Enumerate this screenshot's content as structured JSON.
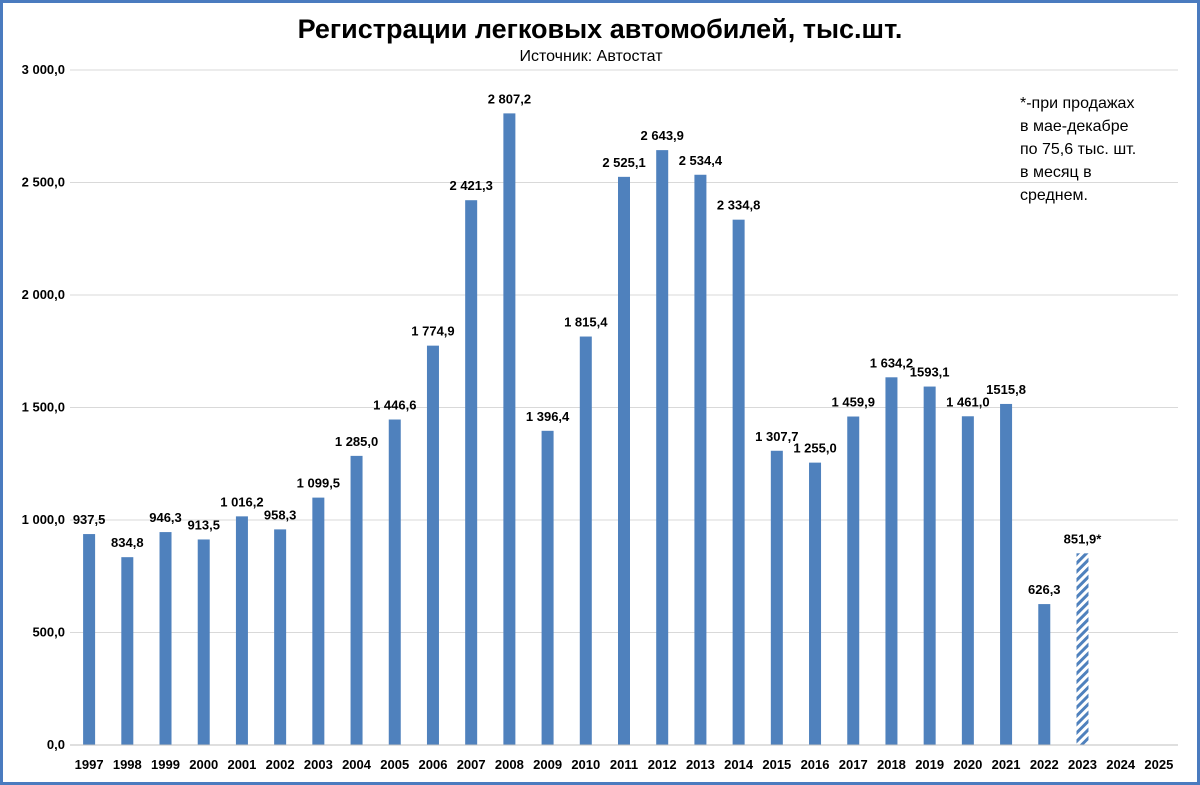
{
  "colors": {
    "bar": "#4f81bd",
    "grid": "#d9d9d9",
    "frame": "#4a7bbf",
    "hatch_bg": "#ffffff"
  },
  "chart_data": {
    "type": "bar",
    "title": "Регистрации легковых автомобилей, тыс.шт.",
    "subtitle": "Источник: Автостат",
    "note": [
      "*-при продажах",
      "в мае-декабре",
      "по 75,6 тыс. шт.",
      "в месяц в",
      "среднем."
    ],
    "categories": [
      "1997",
      "1998",
      "1999",
      "2000",
      "2001",
      "2002",
      "2003",
      "2004",
      "2005",
      "2006",
      "2007",
      "2008",
      "2009",
      "2010",
      "2011",
      "2012",
      "2013",
      "2014",
      "2015",
      "2016",
      "2017",
      "2018",
      "2019",
      "2020",
      "2021",
      "2022",
      "2023",
      "2024",
      "2025"
    ],
    "values": [
      937.5,
      834.8,
      946.3,
      913.5,
      1016.2,
      958.3,
      1099.5,
      1285.0,
      1446.6,
      1774.9,
      2421.3,
      2807.2,
      1396.4,
      1815.4,
      2525.1,
      2643.9,
      2534.4,
      2334.8,
      1307.7,
      1255.0,
      1459.9,
      1634.2,
      1593.1,
      1461.0,
      1515.8,
      626.3,
      851.9,
      null,
      null
    ],
    "value_labels": [
      "937,5",
      "834,8",
      "946,3",
      "913,5",
      "1 016,2",
      "958,3",
      "1 099,5",
      "1 285,0",
      "1 446,6",
      "1 774,9",
      "2 421,3",
      "2 807,2",
      "1 396,4",
      "1 815,4",
      "2 525,1",
      "2 643,9",
      "2 534,4",
      "2 334,8",
      "1 307,7",
      "1 255,0",
      "1 459,9",
      "1 634,2",
      "1593,1",
      "1 461,0",
      "1515,8",
      "626,3",
      "851,9*",
      "",
      ""
    ],
    "hatched": [
      false,
      false,
      false,
      false,
      false,
      false,
      false,
      false,
      false,
      false,
      false,
      false,
      false,
      false,
      false,
      false,
      false,
      false,
      false,
      false,
      false,
      false,
      false,
      false,
      false,
      false,
      true,
      false,
      false
    ],
    "yticks": [
      0,
      500,
      1000,
      1500,
      2000,
      2500,
      3000
    ],
    "ytick_labels": [
      "0,0",
      "500,0",
      "1 000,0",
      "1 500,0",
      "2 000,0",
      "2 500,0",
      "3 000,0"
    ],
    "ylim": [
      0,
      3000
    ],
    "grid": true,
    "legend": "none"
  }
}
